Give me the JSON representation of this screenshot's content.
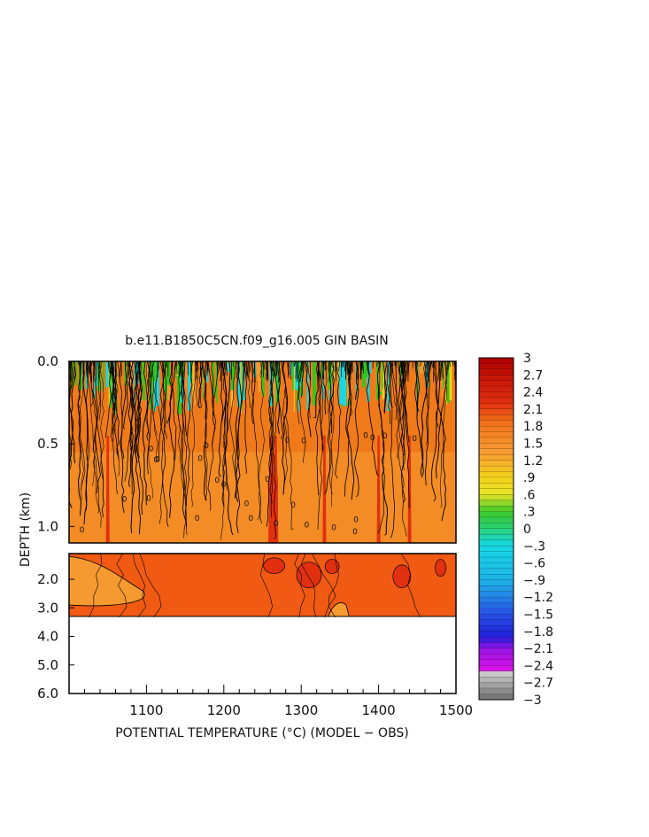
{
  "chart_data": {
    "type": "heatmap",
    "subtype": "filled-contour depth section",
    "title": "b.e11.B1850C5CN.f09_g16.005 GIN BASIN",
    "xlabel": "POTENTIAL TEMPERATURE (°C) (MODEL − OBS)",
    "ylabel": "DEPTH (km)",
    "x_range": [
      1000,
      1500
    ],
    "x_ticks": [
      1100,
      1200,
      1300,
      1400,
      1500
    ],
    "x_tick_labels": [
      "1100",
      "1200",
      "1300",
      "1400",
      "1500"
    ],
    "upper_panel": {
      "y_range": [
        0.0,
        1.1
      ],
      "y_ticks": [
        0.0,
        0.5,
        1.0
      ],
      "y_tick_labels": [
        "0.0",
        "0.5",
        "1.0"
      ]
    },
    "lower_panel": {
      "y_range": [
        1.1,
        6.0
      ],
      "y_ticks": [
        2.0,
        3.0,
        4.0,
        5.0,
        6.0
      ],
      "y_tick_labels": [
        "2.0",
        "3.0",
        "4.0",
        "5.0",
        "6.0"
      ],
      "data_bottom_depth": 3.3
    },
    "colorbar": {
      "range": [
        -3,
        3
      ],
      "tick_values": [
        3,
        2.7,
        2.4,
        2.1,
        1.8,
        1.5,
        1.2,
        0.9,
        0.6,
        0.3,
        0,
        -0.3,
        -0.6,
        -0.9,
        -1.2,
        -1.5,
        -1.8,
        -2.1,
        -2.4,
        -2.7,
        -3
      ],
      "tick_labels": [
        "3",
        "2.7",
        "2.4",
        "2.1",
        "1.8",
        "1.5",
        "1.2",
        ".9",
        ".6",
        ".3",
        "0",
        "−.3",
        "−.6",
        "−.9",
        "−1.2",
        "−1.5",
        "−1.8",
        "−2.1",
        "−2.4",
        "−2.7",
        "−3"
      ]
    },
    "contour_label": "0",
    "colors": {
      "dark_red": "#b00000",
      "red": "#e03010",
      "red_orange": "#f05a12",
      "orange": "#f07a1a",
      "light_orange": "#f59a30",
      "yellow": "#f2d21a",
      "green": "#2ec81a",
      "cyan": "#16d8e6",
      "blue": "#2030e0",
      "magenta": "#e012e6",
      "gray": "#8a8a8a"
    }
  }
}
